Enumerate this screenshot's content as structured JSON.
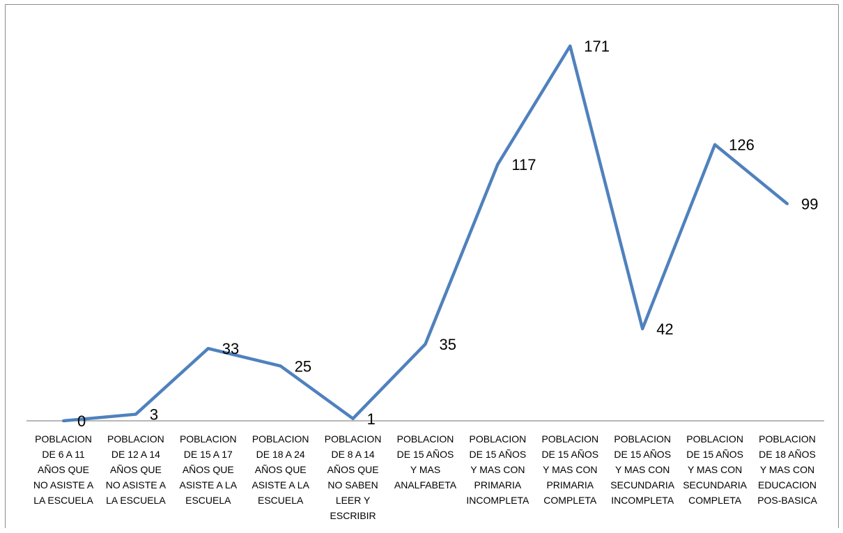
{
  "chart_data": {
    "type": "line",
    "title": "",
    "xlabel": "",
    "ylabel": "",
    "ylim": [
      0,
      171
    ],
    "grid": false,
    "legend": "none",
    "line_color": "#4f81bd",
    "categories": [
      "POBLACION DE 6  A 11 AÑOS QUE NO ASISTE A LA ESCUELA",
      "POBLACION DE 12  A 14 AÑOS QUE NO ASISTE A LA ESCUELA",
      "POBLACION DE 15  A 17 AÑOS QUE ASISTE A LA ESCUELA",
      "POBLACION DE 18  A 24 AÑOS QUE ASISTE A LA ESCUELA",
      "POBLACION DE 8 A 14 AÑOS QUE NO SABEN LEER Y ESCRIBIR",
      "POBLACION DE 15 AÑOS Y MAS ANALFABETA",
      "POBLACION DE 15 AÑOS Y MAS CON PRIMARIA INCOMPLETA",
      "POBLACION DE 15 AÑOS Y MAS CON PRIMARIA COMPLETA",
      "POBLACION DE 15 AÑOS Y MAS CON SECUNDARIA INCOMPLETA",
      "POBLACION DE 15 AÑOS Y MAS CON SECUNDARIA COMPLETA",
      "POBLACION DE 18 AÑOS Y MAS CON EDUCACION POS-BASICA"
    ],
    "label_lines": [
      [
        "POBLACION",
        "DE 6  A 11",
        "AÑOS QUE",
        "NO ASISTE A",
        "LA ESCUELA"
      ],
      [
        "POBLACION",
        "DE 12  A 14",
        "AÑOS QUE",
        "NO ASISTE A",
        "LA ESCUELA"
      ],
      [
        "POBLACION",
        "DE 15  A 17",
        "AÑOS QUE",
        "ASISTE A LA",
        "ESCUELA"
      ],
      [
        "POBLACION",
        "DE 18  A 24",
        "AÑOS QUE",
        "ASISTE A LA",
        "ESCUELA"
      ],
      [
        "POBLACION",
        "DE 8 A 14",
        "AÑOS QUE",
        "NO SABEN",
        "LEER Y",
        "ESCRIBIR"
      ],
      [
        "POBLACION",
        "DE 15 AÑOS",
        "Y MAS",
        "ANALFABETA"
      ],
      [
        "POBLACION",
        "DE 15 AÑOS",
        "Y MAS CON",
        "PRIMARIA",
        "INCOMPLETA"
      ],
      [
        "POBLACION",
        "DE 15 AÑOS",
        "Y MAS CON",
        "PRIMARIA",
        "COMPLETA"
      ],
      [
        "POBLACION",
        "DE 15 AÑOS",
        "Y MAS CON",
        "SECUNDARIA",
        "INCOMPLETA"
      ],
      [
        "POBLACION",
        "DE 15 AÑOS",
        "Y MAS CON",
        "SECUNDARIA",
        "COMPLETA"
      ],
      [
        "POBLACION",
        "DE 18 AÑOS",
        "Y MAS CON",
        "EDUCACION",
        "POS-BASICA"
      ]
    ],
    "series": [
      {
        "values": [
          0,
          3,
          33,
          25,
          1,
          35,
          117,
          171,
          42,
          126,
          99
        ]
      }
    ]
  }
}
